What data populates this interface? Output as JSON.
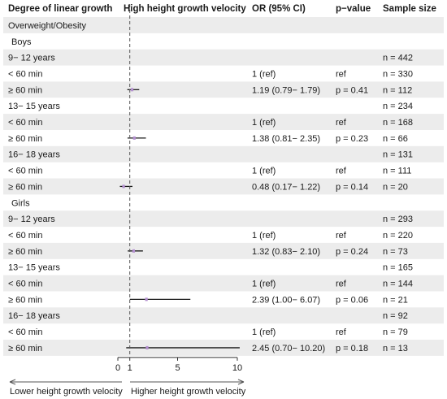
{
  "headers": {
    "label": "Degree of linear growth",
    "plot": "High height growth velocity",
    "or": "OR (95% CI)",
    "p": "p−value",
    "n": "Sample size"
  },
  "x_axis": {
    "ticks": [
      {
        "v": 0,
        "t": "0"
      },
      {
        "v": 1,
        "t": "1"
      },
      {
        "v": 5,
        "t": "5"
      },
      {
        "v": 10,
        "t": "10"
      }
    ],
    "left_label": "Lower height growth velocity",
    "right_label": "Higher height growth velocity"
  },
  "colors": {
    "band": "#ececec",
    "line": "#1a1a1a",
    "point": "#b38fcf",
    "ref_line": "#555555"
  },
  "chart_data": {
    "type": "forest",
    "title": "",
    "xlabel": "",
    "reference_line": 1,
    "xlim": [
      0,
      10
    ],
    "rows": [
      {
        "label": "Overweight/Obesity",
        "indent": 0,
        "or": "",
        "p": "",
        "n": ""
      },
      {
        "label": "Boys",
        "indent": 1,
        "or": "",
        "p": "",
        "n": ""
      },
      {
        "label": "9−  12 years",
        "indent": 0,
        "or": "",
        "p": "",
        "n": "n = 442"
      },
      {
        "label": "< 60 min",
        "indent": 0,
        "or": "1 (ref)",
        "p": "ref",
        "n": "n = 330"
      },
      {
        "label": "≥ 60 min",
        "indent": 0,
        "or": "1.19 (0.79−  1.79)",
        "p": "p = 0.41",
        "n": "n = 112",
        "est": 1.19,
        "lo": 0.79,
        "hi": 1.79
      },
      {
        "label": "13−  15 years",
        "indent": 0,
        "or": "",
        "p": "",
        "n": "n = 234"
      },
      {
        "label": "< 60 min",
        "indent": 0,
        "or": "1 (ref)",
        "p": "ref",
        "n": "n = 168"
      },
      {
        "label": "≥ 60 min",
        "indent": 0,
        "or": "1.38 (0.81−  2.35)",
        "p": "p = 0.23",
        "n": "n = 66",
        "est": 1.38,
        "lo": 0.81,
        "hi": 2.35
      },
      {
        "label": "16−  18 years",
        "indent": 0,
        "or": "",
        "p": "",
        "n": "n = 131"
      },
      {
        "label": "< 60 min",
        "indent": 0,
        "or": "1 (ref)",
        "p": "ref",
        "n": "n = 111"
      },
      {
        "label": "≥ 60 min",
        "indent": 0,
        "or": "0.48 (0.17−  1.22)",
        "p": "p = 0.14",
        "n": "n = 20",
        "est": 0.48,
        "lo": 0.17,
        "hi": 1.22
      },
      {
        "label": "Girls",
        "indent": 1,
        "or": "",
        "p": "",
        "n": ""
      },
      {
        "label": "9−  12 years",
        "indent": 0,
        "or": "",
        "p": "",
        "n": "n = 293"
      },
      {
        "label": "< 60 min",
        "indent": 0,
        "or": "1 (ref)",
        "p": "ref",
        "n": "n = 220"
      },
      {
        "label": "≥ 60 min",
        "indent": 0,
        "or": "1.32 (0.83−  2.10)",
        "p": "p = 0.24",
        "n": "n = 73",
        "est": 1.32,
        "lo": 0.83,
        "hi": 2.1
      },
      {
        "label": "13−  15 years",
        "indent": 0,
        "or": "",
        "p": "",
        "n": "n = 165"
      },
      {
        "label": "< 60 min",
        "indent": 0,
        "or": "1 (ref)",
        "p": "ref",
        "n": "n = 144"
      },
      {
        "label": "≥ 60 min",
        "indent": 0,
        "or": "2.39 (1.00−  6.07)",
        "p": "p = 0.06",
        "n": "n = 21",
        "est": 2.39,
        "lo": 1.0,
        "hi": 6.07
      },
      {
        "label": "16−  18 years",
        "indent": 0,
        "or": "",
        "p": "",
        "n": "n = 92"
      },
      {
        "label": "< 60 min",
        "indent": 0,
        "or": "1 (ref)",
        "p": "ref",
        "n": "n = 79"
      },
      {
        "label": "≥ 60 min",
        "indent": 0,
        "or": "2.45 (0.70−  10.20)",
        "p": "p = 0.18",
        "n": "n = 13",
        "est": 2.45,
        "lo": 0.7,
        "hi": 10.2
      }
    ]
  }
}
